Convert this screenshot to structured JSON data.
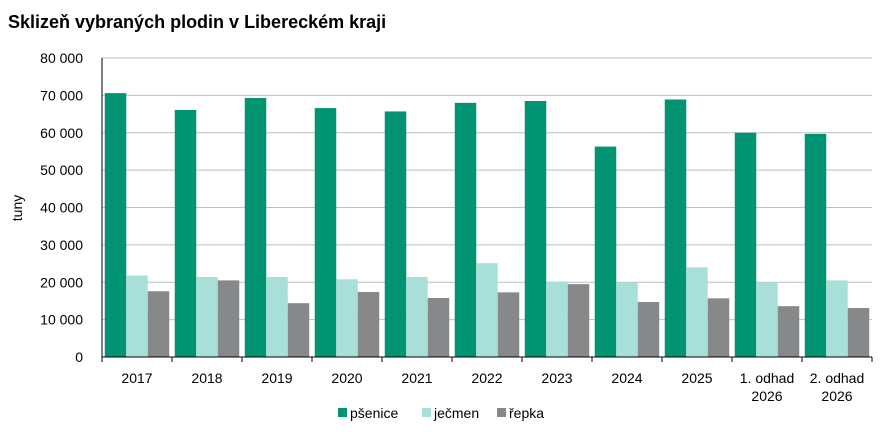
{
  "chart_data": {
    "type": "bar",
    "title": "Sklizeň vybraných plodin v Libereckém kraji",
    "ylabel": "tuny",
    "xlabel": "",
    "ylim": [
      0,
      80000
    ],
    "yticks": [
      "0",
      "10 000",
      "20 000",
      "30 000",
      "40 000",
      "50 000",
      "60 000",
      "70 000",
      "80 000"
    ],
    "grid": true,
    "legend_position": "bottom",
    "categories": [
      [
        "2017"
      ],
      [
        "2018"
      ],
      [
        "2019"
      ],
      [
        "2020"
      ],
      [
        "2021"
      ],
      [
        "2022"
      ],
      [
        "2023"
      ],
      [
        "2024"
      ],
      [
        "2025"
      ],
      [
        "1. odhad",
        "2026"
      ],
      [
        "2. odhad",
        "2026"
      ]
    ],
    "series": [
      {
        "name": "pšenice",
        "color": "#009473",
        "values": [
          70600,
          66100,
          69300,
          66600,
          65700,
          68000,
          68500,
          56300,
          68900,
          60000,
          59700
        ]
      },
      {
        "name": "ječmen",
        "color": "#a8e0d9",
        "values": [
          21800,
          21400,
          21400,
          20800,
          21400,
          25100,
          20200,
          19900,
          24000,
          19900,
          20500
        ]
      },
      {
        "name": "řepka",
        "color": "#87888a",
        "values": [
          17600,
          20500,
          14400,
          17400,
          15800,
          17300,
          19500,
          14700,
          15700,
          13600,
          13100
        ]
      }
    ]
  }
}
